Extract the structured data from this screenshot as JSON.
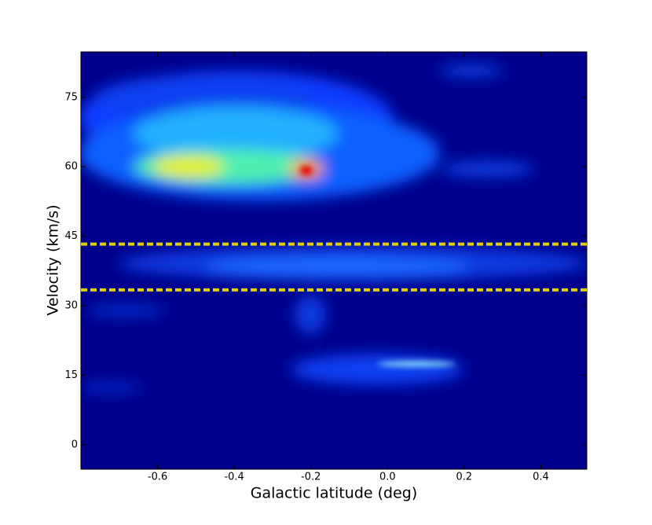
{
  "chart_data": {
    "type": "image",
    "xlabel": "Galactic latitude (deg)",
    "ylabel": "Velocity (km/s)",
    "xlim": [
      -0.8,
      0.52
    ],
    "ylim": [
      -5.3,
      84.8
    ],
    "xticks": [
      -0.6,
      -0.4,
      -0.2,
      {
        "value": 0,
        "label": "0.0"
      },
      0.2,
      0.4
    ],
    "yticks": [
      0,
      15,
      30,
      45,
      60,
      75
    ],
    "hlines": [
      {
        "value": 43.3,
        "color": "#e0d000"
      },
      {
        "value": 33.4,
        "color": "#e0d000"
      }
    ]
  }
}
